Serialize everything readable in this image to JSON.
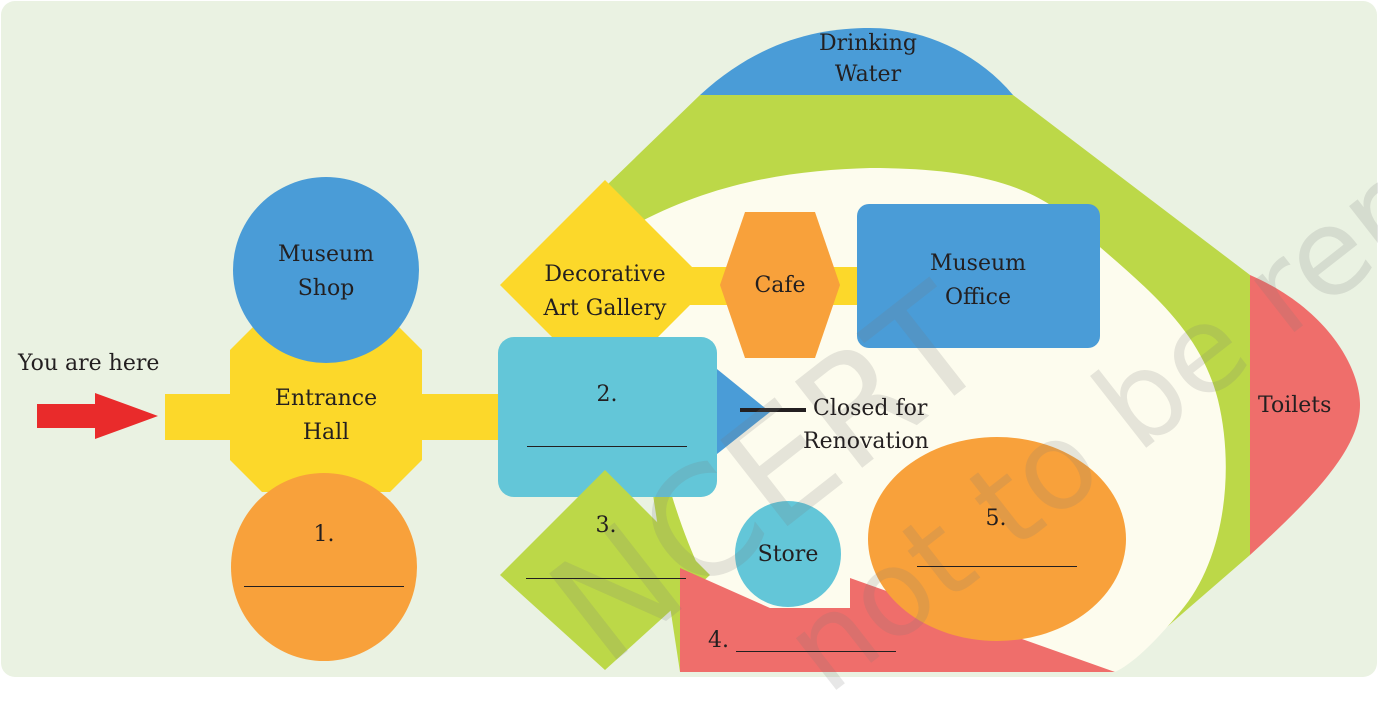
{
  "colors": {
    "background": "#eaf2e2",
    "yellow": "#fcd82a",
    "blue": "#4a9cd7",
    "cyan": "#63c6d8",
    "orange": "#f8a13b",
    "green": "#bcd848",
    "red": "#ef6e6b",
    "cream": "#fdfcee",
    "arrow": "#e92b2b"
  },
  "labels": {
    "you_are_here": "You are here",
    "museum_shop": [
      "Museum",
      "Shop"
    ],
    "entrance_hall": [
      "Entrance",
      "Hall"
    ],
    "blank1": "1.",
    "decorative_gallery": [
      "Decorative",
      "Art Gallery"
    ],
    "cafe": "Cafe",
    "museum_office": [
      "Museum",
      "Office"
    ],
    "drinking_water": [
      "Drinking",
      "Water"
    ],
    "blank2": "2.",
    "closed": [
      "Closed for",
      "Renovation"
    ],
    "blank3": "3.",
    "store": "Store",
    "blank4": "4.",
    "blank5": "5.",
    "toilets": "Toilets"
  },
  "watermark": [
    "NCERT",
    "not to be republished"
  ]
}
